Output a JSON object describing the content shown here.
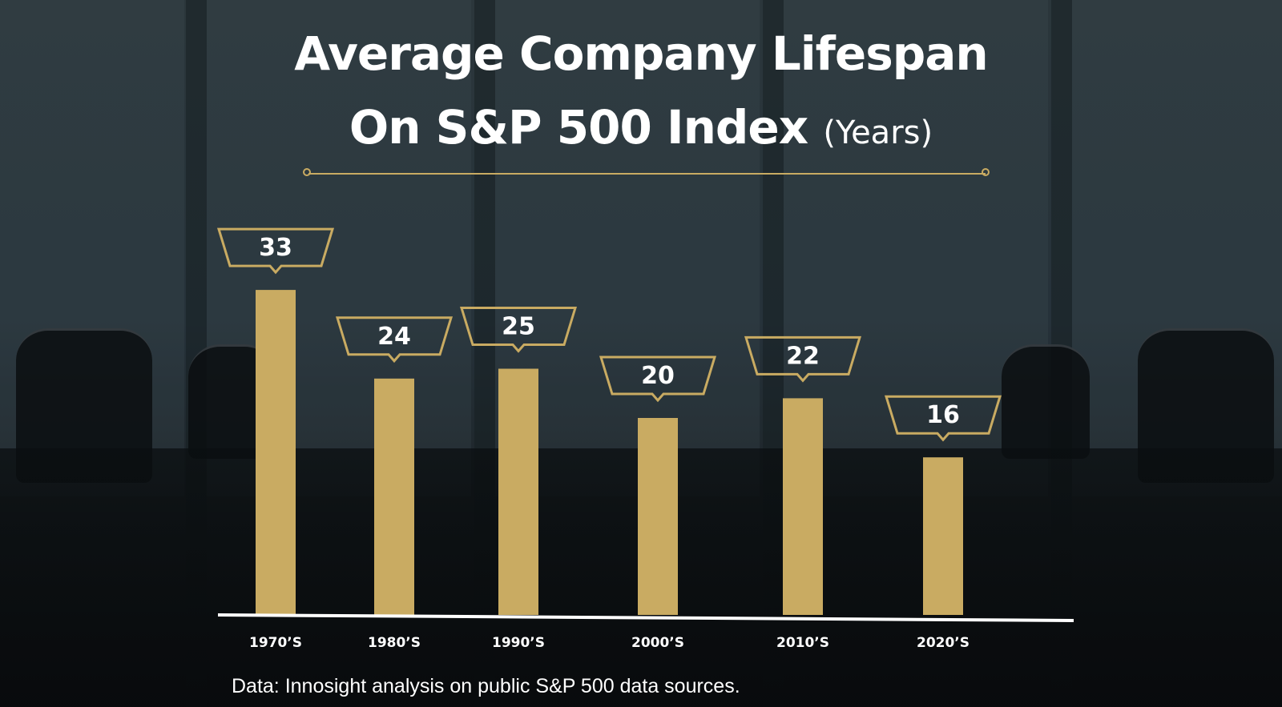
{
  "header": {
    "title_line1": "Average Company Lifespan",
    "title_line2": "On S&P 500 Index",
    "title_unit": "(Years)"
  },
  "footer": {
    "source": "Data: Innosight analysis on public S&P 500 data sources."
  },
  "colors": {
    "bar": "#c9ab62",
    "callout_border": "#c9ab62",
    "text": "#ffffff",
    "axis": "#ffffff"
  },
  "chart_data": {
    "type": "bar",
    "title": "Average Company Lifespan On S&P 500 Index (Years)",
    "categories": [
      "1970’S",
      "1980’S",
      "1990’S",
      "2000’S",
      "2010’S",
      "2020’S"
    ],
    "values": [
      33,
      24,
      25,
      20,
      22,
      16
    ],
    "xlabel": "",
    "ylabel": "",
    "ylim": [
      0,
      33
    ],
    "grid": false,
    "legend": "none",
    "data_labels": "callout boxes above bars"
  }
}
